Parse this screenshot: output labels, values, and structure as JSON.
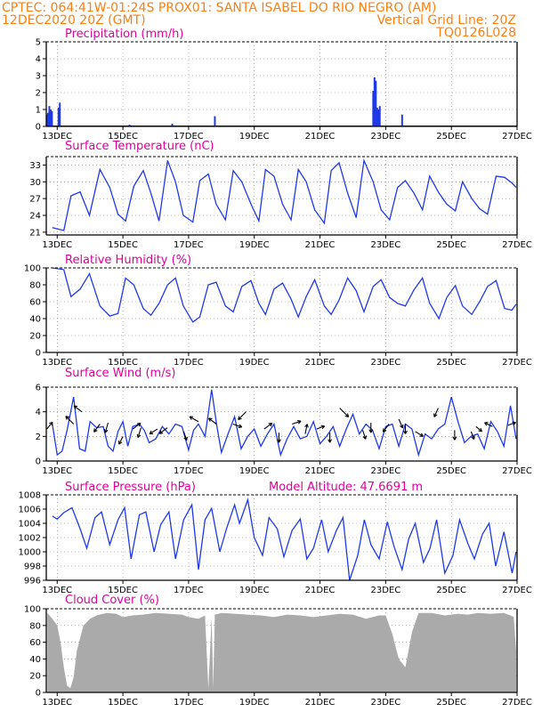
{
  "header": {
    "left_line1": "CPTEC:   064:41W-01:24S   PROX01: SANTA ISABEL DO RIO NEGRO (AM)",
    "left_line2": "12DEC2020 20Z (GMT)",
    "right_line2": "Vertical Grid Line: 20Z",
    "right_line3": "TQ0126L028"
  },
  "colors": {
    "header": "#ff7f0e",
    "title": "#e0009f",
    "series": "#1f39e6",
    "cloud": "#aaaaaa",
    "arrow": "#000000"
  },
  "x_tick_labels": [
    "13DEC",
    "15DEC",
    "17DEC",
    "19DEC",
    "21DEC",
    "23DEC",
    "25DEC",
    "27DEC"
  ],
  "chart_data": [
    {
      "type": "bar",
      "title": "Precipitation (mm/h)",
      "ylim": [
        0,
        5
      ],
      "yticks": [
        "0",
        "1",
        "2",
        "3",
        "4",
        "5"
      ],
      "x_range_days": [
        12.833,
        27.0
      ],
      "x": [
        12.68,
        12.72,
        12.76,
        12.8,
        12.84,
        13.04,
        13.08,
        13.5,
        13.94,
        14.4,
        15.2,
        15.8,
        16.5,
        17.2,
        17.8,
        18.5,
        20.2,
        21.0,
        22.3,
        22.62,
        22.66,
        22.7,
        22.74,
        22.78,
        22.82,
        23.1,
        23.5,
        24.2,
        25.2,
        26.5
      ],
      "values": [
        0.7,
        0.8,
        1.2,
        1.0,
        0.9,
        1.1,
        1.4,
        0.05,
        0.05,
        0.05,
        0.1,
        0.05,
        0.15,
        0.05,
        0.6,
        0.05,
        0.05,
        0.05,
        0.05,
        2.1,
        2.9,
        2.7,
        1.1,
        1.0,
        1.2,
        0.05,
        0.7,
        0.05,
        0.05,
        0.05
      ]
    },
    {
      "type": "line",
      "title": "Surface Temperature (nC)",
      "ylim": [
        20.5,
        34.5
      ],
      "yticks": [
        "21",
        "24",
        "27",
        "30",
        "33"
      ],
      "x": [
        12.85,
        13.2,
        13.42,
        13.7,
        13.98,
        14.3,
        14.6,
        14.85,
        15.08,
        15.33,
        15.62,
        15.85,
        16.1,
        16.36,
        16.6,
        16.84,
        17.13,
        17.34,
        17.6,
        17.84,
        18.12,
        18.36,
        18.62,
        18.9,
        19.14,
        19.34,
        19.6,
        19.86,
        20.12,
        20.34,
        20.58,
        20.84,
        21.13,
        21.34,
        21.58,
        21.84,
        22.1,
        22.34,
        22.62,
        22.86,
        23.12,
        23.36,
        23.6,
        23.86,
        24.12,
        24.34,
        24.62,
        24.86,
        25.12,
        25.34,
        25.62,
        25.86,
        26.1,
        26.36,
        26.62,
        26.84,
        26.97
      ],
      "values": [
        21.8,
        21.3,
        27.5,
        28.2,
        24.0,
        32.2,
        29.0,
        24.2,
        23.0,
        29.2,
        32.0,
        28.0,
        23.0,
        33.8,
        30.0,
        24.0,
        22.8,
        30.2,
        31.4,
        26.0,
        23.2,
        32.0,
        30.0,
        26.0,
        23.0,
        32.2,
        31.0,
        26.0,
        23.2,
        32.2,
        30.0,
        25.0,
        22.6,
        32.0,
        33.4,
        28.0,
        23.6,
        33.8,
        30.0,
        25.0,
        23.2,
        29.0,
        30.2,
        28.0,
        25.0,
        31.0,
        28.0,
        26.0,
        24.8,
        30.0,
        27.0,
        25.2,
        24.2,
        31.0,
        30.8,
        29.8,
        29.0
      ]
    },
    {
      "type": "line",
      "title": "Relative Humidity (%)",
      "ylim": [
        0,
        100
      ],
      "yticks": [
        "0",
        "20",
        "40",
        "60",
        "80",
        "100"
      ],
      "x": [
        12.85,
        13.2,
        13.42,
        13.7,
        13.98,
        14.3,
        14.6,
        14.85,
        15.08,
        15.33,
        15.62,
        15.85,
        16.1,
        16.36,
        16.6,
        16.84,
        17.13,
        17.34,
        17.6,
        17.84,
        18.12,
        18.36,
        18.62,
        18.9,
        19.14,
        19.34,
        19.6,
        19.86,
        20.12,
        20.34,
        20.58,
        20.84,
        21.13,
        21.34,
        21.58,
        21.84,
        22.1,
        22.34,
        22.62,
        22.86,
        23.12,
        23.36,
        23.6,
        23.86,
        24.12,
        24.34,
        24.62,
        24.86,
        25.12,
        25.34,
        25.62,
        25.86,
        26.1,
        26.36,
        26.62,
        26.84,
        26.97
      ],
      "values": [
        100,
        98,
        66,
        75,
        93,
        55,
        43,
        46,
        88,
        80,
        52,
        44,
        58,
        80,
        88,
        55,
        36,
        42,
        80,
        83,
        55,
        48,
        78,
        85,
        58,
        45,
        75,
        82,
        63,
        42,
        66,
        86,
        55,
        45,
        62,
        88,
        73,
        48,
        78,
        86,
        65,
        58,
        55,
        74,
        88,
        58,
        40,
        65,
        79,
        55,
        45,
        60,
        78,
        85,
        52,
        50,
        57
      ]
    },
    {
      "type": "line",
      "title": "Surface Wind (m/s)",
      "ylim": [
        0,
        6
      ],
      "yticks": [
        "0",
        "2",
        "4",
        "6"
      ],
      "x": [
        12.85,
        13.0,
        13.15,
        13.3,
        13.5,
        13.68,
        13.85,
        14.0,
        14.2,
        14.4,
        14.55,
        14.7,
        14.85,
        15.0,
        15.15,
        15.3,
        15.5,
        15.65,
        15.8,
        16.0,
        16.2,
        16.4,
        16.6,
        16.8,
        17.0,
        17.15,
        17.3,
        17.5,
        17.7,
        17.85,
        18.0,
        18.2,
        18.4,
        18.6,
        18.8,
        19.0,
        19.2,
        19.4,
        19.6,
        19.8,
        20.0,
        20.2,
        20.4,
        20.6,
        20.8,
        21.0,
        21.2,
        21.4,
        21.6,
        21.8,
        22.0,
        22.2,
        22.4,
        22.6,
        22.8,
        23.0,
        23.2,
        23.4,
        23.6,
        23.8,
        24.0,
        24.2,
        24.4,
        24.6,
        24.8,
        25.0,
        25.2,
        25.4,
        25.6,
        25.8,
        26.0,
        26.2,
        26.4,
        26.6,
        26.8,
        26.97
      ],
      "values": [
        3.0,
        0.5,
        0.8,
        2.5,
        5.2,
        1.0,
        0.8,
        3.2,
        2.7,
        2.8,
        1.2,
        0.8,
        2.4,
        3.2,
        1.2,
        2.8,
        3.0,
        2.5,
        1.5,
        1.8,
        2.8,
        2.2,
        3.0,
        2.8,
        0.9,
        2.5,
        3.0,
        2.0,
        5.8,
        3.0,
        0.7,
        2.2,
        3.6,
        1.0,
        2.0,
        2.6,
        1.2,
        2.2,
        3.0,
        0.5,
        1.8,
        2.8,
        1.8,
        2.0,
        3.2,
        1.4,
        2.0,
        2.8,
        1.2,
        2.6,
        3.8,
        2.2,
        3.0,
        2.5,
        1.0,
        2.8,
        3.0,
        1.2,
        3.0,
        2.6,
        0.5,
        2.2,
        1.8,
        2.6,
        3.0,
        5.2,
        3.2,
        1.5,
        2.0,
        2.2,
        1.0,
        3.2,
        2.4,
        1.2,
        4.5,
        1.8
      ],
      "arrows": [
        {
          "x": 12.68,
          "value": 2.6,
          "u": 0.6,
          "v": 0.7
        },
        {
          "x": 13.5,
          "value": 3.0,
          "u": -0.8,
          "v": 0.8
        },
        {
          "x": 13.75,
          "value": 4.0,
          "u": -0.8,
          "v": 0.6
        },
        {
          "x": 14.3,
          "value": 3.0,
          "u": -0.6,
          "v": -0.8
        },
        {
          "x": 14.55,
          "value": 3.1,
          "u": -0.3,
          "v": -1.0
        },
        {
          "x": 15.0,
          "value": 2.0,
          "u": -0.4,
          "v": -0.8
        },
        {
          "x": 15.3,
          "value": 2.6,
          "u": 0.8,
          "v": 0.6
        },
        {
          "x": 15.55,
          "value": 2.7,
          "u": -0.3,
          "v": -1.0
        },
        {
          "x": 16.05,
          "value": 2.6,
          "u": -0.8,
          "v": -0.5
        },
        {
          "x": 16.35,
          "value": 2.7,
          "u": -0.8,
          "v": -0.6
        },
        {
          "x": 16.85,
          "value": 2.4,
          "u": 0.3,
          "v": -0.9
        },
        {
          "x": 17.3,
          "value": 3.2,
          "u": -0.9,
          "v": 0.5
        },
        {
          "x": 17.85,
          "value": 3.0,
          "u": -0.8,
          "v": 0.6
        },
        {
          "x": 18.35,
          "value": 3.0,
          "u": 0.9,
          "v": -0.3
        },
        {
          "x": 18.75,
          "value": 4.0,
          "u": -0.8,
          "v": -0.8
        },
        {
          "x": 19.3,
          "value": 2.6,
          "u": 0.8,
          "v": 0.6
        },
        {
          "x": 19.75,
          "value": 2.3,
          "u": 0.0,
          "v": -1.0
        },
        {
          "x": 20.15,
          "value": 3.0,
          "u": 0.9,
          "v": 0.3
        },
        {
          "x": 20.55,
          "value": 2.2,
          "u": 0.2,
          "v": 1.0
        },
        {
          "x": 20.9,
          "value": 2.6,
          "u": 0.8,
          "v": 0.3
        },
        {
          "x": 21.3,
          "value": 2.3,
          "u": 0.0,
          "v": -1.0
        },
        {
          "x": 21.6,
          "value": 4.3,
          "u": 0.9,
          "v": -0.9
        },
        {
          "x": 22.3,
          "value": 2.5,
          "u": 0.3,
          "v": -0.9
        },
        {
          "x": 22.55,
          "value": 3.1,
          "u": 0.0,
          "v": -1.0
        },
        {
          "x": 23.1,
          "value": 3.0,
          "u": -0.6,
          "v": -0.8
        },
        {
          "x": 23.4,
          "value": 3.4,
          "u": 0.4,
          "v": -0.9
        },
        {
          "x": 23.6,
          "value": 3.0,
          "u": 0.0,
          "v": -1.0
        },
        {
          "x": 23.9,
          "value": 2.4,
          "u": 0.8,
          "v": -0.5
        },
        {
          "x": 24.6,
          "value": 4.3,
          "u": -0.4,
          "v": -0.9
        },
        {
          "x": 25.1,
          "value": 2.5,
          "u": 0.0,
          "v": -1.0
        },
        {
          "x": 25.6,
          "value": 2.4,
          "u": 0.3,
          "v": -0.8
        },
        {
          "x": 25.75,
          "value": 2.8,
          "u": 0.6,
          "v": -0.5
        },
        {
          "x": 26.25,
          "value": 2.8,
          "u": -0.8,
          "v": 0.4
        },
        {
          "x": 26.72,
          "value": 2.9,
          "u": 0.8,
          "v": 0.3
        }
      ]
    },
    {
      "type": "line",
      "title": "Surface Pressure (hPa)",
      "annotation": "Model Altitude: 47.6691  m",
      "ylim": [
        996,
        1008
      ],
      "yticks": [
        "996",
        "998",
        "1000",
        "1002",
        "1004",
        "1006",
        "1008"
      ],
      "x": [
        12.85,
        13.0,
        13.2,
        13.45,
        13.7,
        13.9,
        14.15,
        14.35,
        14.6,
        14.85,
        15.05,
        15.25,
        15.5,
        15.7,
        15.95,
        16.15,
        16.4,
        16.6,
        16.85,
        17.1,
        17.3,
        17.5,
        17.7,
        17.95,
        18.15,
        18.4,
        18.55,
        18.8,
        19.0,
        19.25,
        19.45,
        19.7,
        19.9,
        20.15,
        20.4,
        20.6,
        20.8,
        21.05,
        21.25,
        21.5,
        21.7,
        21.9,
        22.15,
        22.35,
        22.55,
        22.8,
        23.05,
        23.25,
        23.5,
        23.7,
        23.9,
        24.15,
        24.35,
        24.55,
        24.8,
        25.05,
        25.25,
        25.5,
        25.7,
        25.95,
        26.15,
        26.35,
        26.6,
        26.85,
        26.97
      ],
      "values": [
        1005.0,
        1004.6,
        1005.5,
        1006.2,
        1003.2,
        1000.5,
        1004.8,
        1005.6,
        1001.0,
        1004.5,
        1006.2,
        999.0,
        1005.2,
        1005.6,
        1000.0,
        1003.8,
        1005.6,
        999.0,
        1004.5,
        1006.6,
        997.5,
        1004.5,
        1006.1,
        1000.0,
        1003.2,
        1006.6,
        1004.0,
        1007.3,
        1002.0,
        999.5,
        1004.8,
        1003.2,
        999.3,
        1003.0,
        1004.6,
        999.0,
        1000.5,
        1004.5,
        1000.0,
        1003.0,
        1004.8,
        996.0,
        999.5,
        1004.5,
        1001.0,
        999.0,
        1004.2,
        1000.8,
        997.5,
        1001.8,
        1004.0,
        998.5,
        1000.5,
        1004.5,
        997.0,
        999.5,
        1004.5,
        1001.2,
        999.0,
        1002.5,
        1004.0,
        998.0,
        1002.8,
        997.0,
        1000.0
      ]
    },
    {
      "type": "area",
      "title": "Cloud Cover (%)",
      "ylim": [
        0,
        100
      ],
      "yticks": [
        "0",
        "20",
        "40",
        "60",
        "80",
        "100"
      ],
      "x": [
        12.7,
        12.85,
        13.0,
        13.1,
        13.2,
        13.3,
        13.4,
        13.5,
        13.6,
        13.8,
        14.0,
        14.2,
        14.5,
        14.8,
        15.0,
        15.3,
        15.6,
        16.0,
        16.4,
        16.8,
        17.0,
        17.3,
        17.5,
        17.6,
        17.7,
        17.75,
        17.8,
        18.0,
        18.4,
        18.8,
        19.2,
        19.6,
        20.0,
        20.4,
        20.8,
        21.2,
        21.6,
        22.0,
        22.4,
        22.8,
        23.0,
        23.2,
        23.4,
        23.6,
        23.8,
        24.0,
        24.4,
        24.8,
        25.2,
        25.5,
        25.8,
        26.2,
        26.6,
        26.8,
        26.9,
        26.97
      ],
      "values": [
        95,
        88,
        80,
        60,
        30,
        8,
        5,
        18,
        50,
        80,
        88,
        92,
        95,
        94,
        90,
        92,
        93,
        95,
        94,
        93,
        90,
        88,
        92,
        5,
        90,
        5,
        93,
        95,
        94,
        93,
        92,
        90,
        93,
        92,
        90,
        92,
        94,
        93,
        88,
        92,
        92,
        70,
        40,
        30,
        72,
        95,
        95,
        92,
        94,
        93,
        95,
        94,
        95,
        92,
        90,
        50
      ]
    }
  ]
}
